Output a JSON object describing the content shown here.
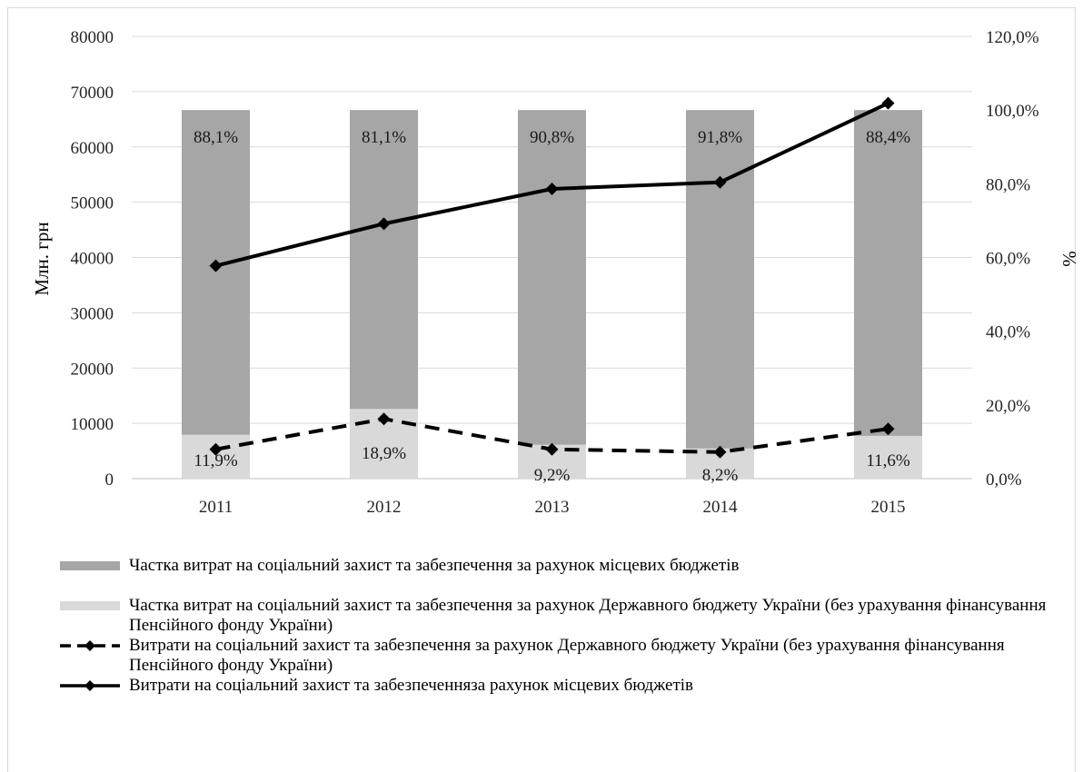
{
  "chart_data": {
    "type": "bar+line",
    "categories": [
      "2011",
      "2012",
      "2013",
      "2014",
      "2015"
    ],
    "ylabel_left": "Млн. грн",
    "ylabel_right": "%",
    "ylim_left": [
      0,
      80000
    ],
    "ylim_right": [
      0,
      120
    ],
    "yticks_left": [
      "0",
      "10000",
      "20000",
      "30000",
      "40000",
      "50000",
      "60000",
      "70000",
      "80000"
    ],
    "yticks_right": [
      "0,0%",
      "20,0%",
      "40,0%",
      "60,0%",
      "80,0%",
      "100,0%",
      "120,0%"
    ],
    "grid": true,
    "legend_position": "bottom",
    "bar_series": [
      {
        "name": "Частка витрат на соціальний захист та забезпечення за рахунок Державного бюджету України (без урахування фінансування Пенсійного фонду України)",
        "color": "#d9d9d9",
        "values_pct": [
          11.9,
          18.9,
          9.2,
          8.2,
          11.6
        ],
        "labels": [
          "11,9%",
          "18,9%",
          "9,2%",
          "8,2%",
          "11,6%"
        ]
      },
      {
        "name": "Частка витрат на соціальний захист та забезпечення за рахунок місцевих бюджетів",
        "color": "#a6a6a6",
        "values_pct": [
          88.1,
          81.1,
          90.8,
          91.8,
          88.4
        ],
        "labels": [
          "88,1%",
          "81,1%",
          "90,8%",
          "91,8%",
          "88,4%"
        ]
      }
    ],
    "line_series": [
      {
        "name": "Витрати на соціальний захист та забезпечення за рахунок Державного бюджету України (без урахування фінансування Пенсійного фонду України)",
        "style": "dashed",
        "color": "#000000",
        "values": [
          5300,
          10800,
          5300,
          4800,
          9000
        ]
      },
      {
        "name": "Витрати на соціальний захист та забезпеченняза рахунок місцевих бюджетів",
        "style": "solid",
        "color": "#000000",
        "values": [
          38500,
          46100,
          52400,
          53600,
          67900
        ]
      }
    ]
  },
  "legend": {
    "item1": "Частка витрат на соціальний захист та забезпечення за рахунок місцевих бюджетів",
    "item2": "Частка витрат на соціальний захист та забезпечення за рахунок Державного бюджету України (без урахування фінансування Пенсійного фонду України)",
    "item3": "Витрати на соціальний захист та забезпечення за рахунок Державного бюджету України (без урахування фінансування Пенсійного фонду України)",
    "item4": "Витрати на соціальний захист та забезпеченняза рахунок місцевих бюджетів"
  }
}
